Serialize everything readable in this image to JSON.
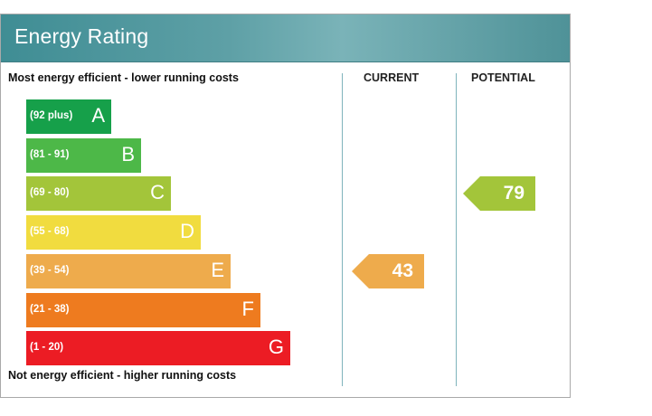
{
  "header": {
    "title": "Energy Rating"
  },
  "columns": {
    "current_label": "CURRENT",
    "potential_label": "POTENTIAL"
  },
  "captions": {
    "top": "Most energy efficient - lower running costs",
    "bottom": "Not energy efficient - higher running costs"
  },
  "chart_data": {
    "type": "bar",
    "title": "Energy Rating",
    "categories": [
      "A",
      "B",
      "C",
      "D",
      "E",
      "F",
      "G"
    ],
    "ranges": [
      "(92 plus)",
      "(81 - 91)",
      "(69 - 80)",
      "(55 - 68)",
      "(39 - 54)",
      "(21 - 38)",
      "(1 - 20)"
    ],
    "range_min": [
      92,
      81,
      69,
      55,
      39,
      21,
      1
    ],
    "range_max": [
      100,
      91,
      80,
      68,
      54,
      38,
      20
    ],
    "colors": [
      "#16a04a",
      "#4db848",
      "#a3c53a",
      "#f1dc3f",
      "#eeab4c",
      "#ee7b1f",
      "#ec1c24"
    ],
    "current": {
      "value": 43,
      "band": "E",
      "color": "#eeab4c"
    },
    "potential": {
      "value": 79,
      "band": "C",
      "color": "#a3c53a"
    }
  }
}
